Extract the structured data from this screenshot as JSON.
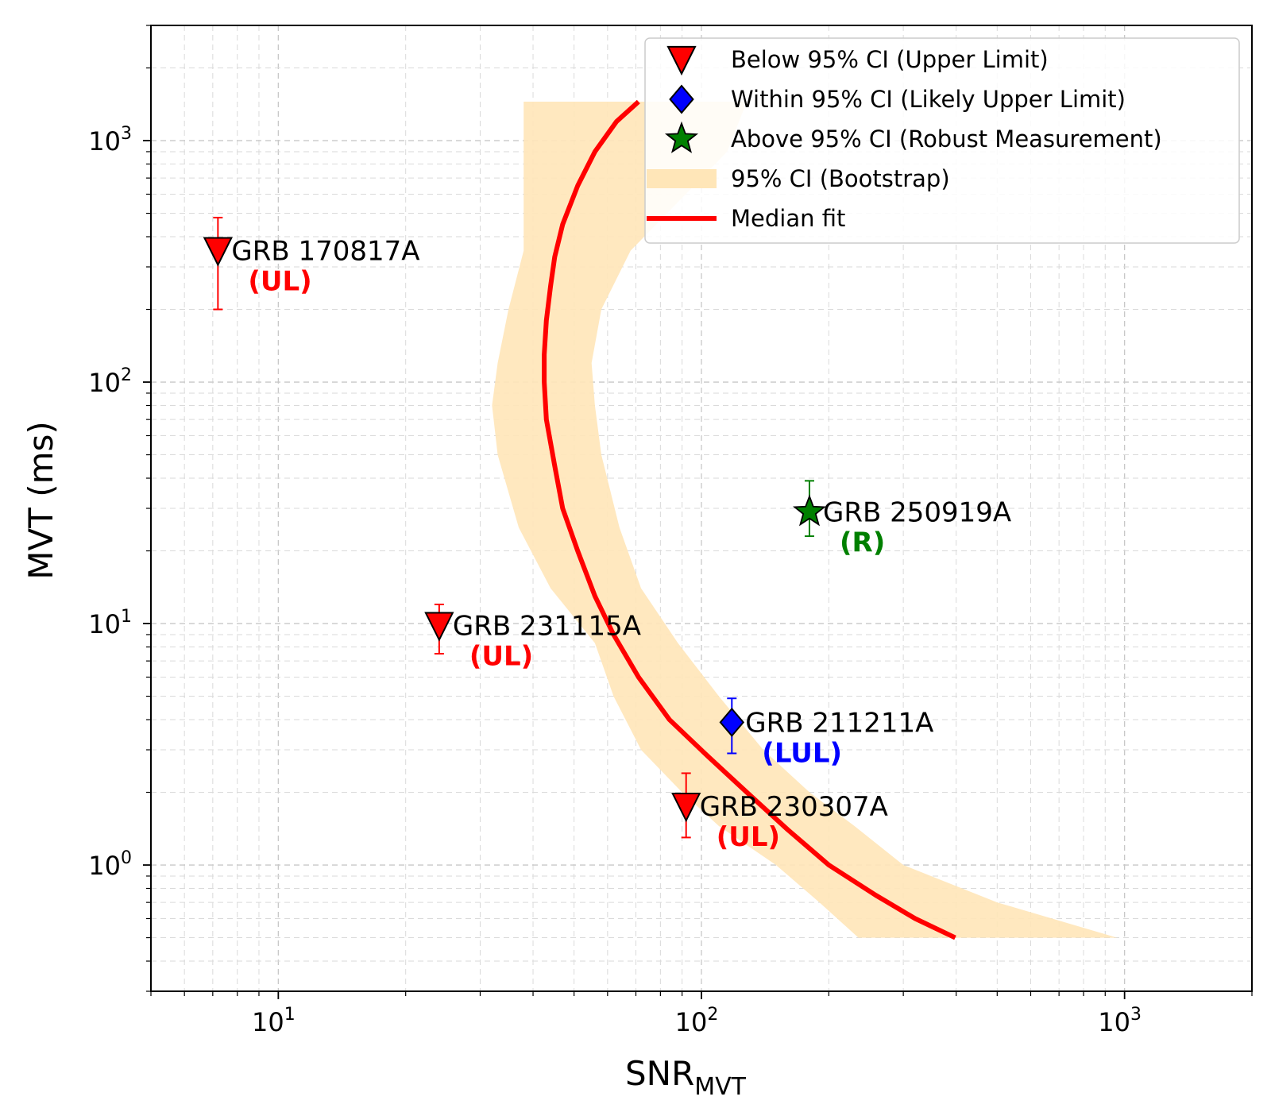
{
  "chart_data": {
    "type": "scatter",
    "xscale": "log",
    "yscale": "log",
    "xlim": [
      5,
      2000
    ],
    "ylim": [
      0.3,
      3000
    ],
    "xlabel": {
      "base": "SNR",
      "sub": "MVT"
    },
    "ylabel": "MVT (ms)",
    "grid": true,
    "legend_position": "top-right",
    "x_ticks": [
      {
        "value": 10,
        "base": "10",
        "exp": "1"
      },
      {
        "value": 100,
        "base": "10",
        "exp": "2"
      },
      {
        "value": 1000,
        "base": "10",
        "exp": "3"
      }
    ],
    "y_ticks": [
      {
        "value": 1,
        "base": "10",
        "exp": "0"
      },
      {
        "value": 10,
        "base": "10",
        "exp": "1"
      },
      {
        "value": 100,
        "base": "10",
        "exp": "2"
      },
      {
        "value": 1000,
        "base": "10",
        "exp": "3"
      }
    ],
    "legend": [
      {
        "key": "below",
        "label": "Below 95% CI (Upper Limit)"
      },
      {
        "key": "within",
        "label": "Within 95% CI (Likely Upper Limit)"
      },
      {
        "key": "above",
        "label": "Above 95% CI (Robust Measurement)"
      },
      {
        "key": "band",
        "label": "95% CI (Bootstrap)"
      },
      {
        "key": "fit",
        "label": "Median fit"
      }
    ],
    "colors": {
      "below": "#ff0000",
      "within": "#0000ff",
      "above": "#008000",
      "band": "#ffe6b8",
      "fit": "#ff0000"
    },
    "points": [
      {
        "name": "GRB 170817A",
        "class_label": "(UL)",
        "category": "below",
        "snr": 7.2,
        "mvt": 350,
        "err_low": 200,
        "err_high": 480
      },
      {
        "name": "GRB 231115A",
        "class_label": "(UL)",
        "category": "below",
        "snr": 24,
        "mvt": 9.8,
        "err_low": 7.5,
        "err_high": 12
      },
      {
        "name": "GRB 250919A",
        "class_label": "(R)",
        "category": "above",
        "snr": 180,
        "mvt": 29,
        "err_low": 23,
        "err_high": 39
      },
      {
        "name": "GRB 211211A",
        "class_label": "(LUL)",
        "category": "within",
        "snr": 118,
        "mvt": 3.9,
        "err_low": 2.9,
        "err_high": 4.9
      },
      {
        "name": "GRB 230307A",
        "class_label": "(UL)",
        "category": "below",
        "snr": 92,
        "mvt": 1.75,
        "err_low": 1.3,
        "err_high": 2.4
      }
    ],
    "median_fit": {
      "mvt": [
        1450,
        1200,
        900,
        650,
        450,
        330,
        250,
        180,
        130,
        100,
        70,
        45,
        30,
        20,
        13,
        9,
        6,
        4,
        2.8,
        2,
        1.4,
        1,
        0.75,
        0.6,
        0.5
      ],
      "snr": [
        71,
        63,
        56,
        51,
        47,
        45,
        44,
        43,
        42.5,
        42.5,
        43,
        45,
        47,
        51,
        56,
        62,
        71,
        84,
        104,
        128,
        160,
        200,
        258,
        320,
        398
      ]
    },
    "ci_band": {
      "mvt": [
        1450,
        900,
        350,
        200,
        120,
        80,
        50,
        25,
        14,
        8.3,
        5,
        3,
        2,
        1.45,
        1,
        0.7,
        0.5
      ],
      "snr_low": [
        38,
        38,
        38,
        35,
        33,
        32,
        33,
        37,
        44,
        56,
        62,
        72,
        90,
        110,
        150,
        190,
        235
      ],
      "snr_high": [
        128,
        115,
        68,
        58,
        55,
        56,
        58,
        64,
        72,
        88,
        110,
        140,
        180,
        230,
        300,
        500,
        960
      ]
    }
  }
}
